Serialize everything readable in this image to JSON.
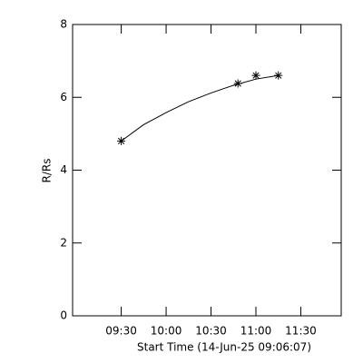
{
  "chart_data": {
    "type": "line",
    "xlabel": "Start Time (14-Jun-25 09:06:07)",
    "ylabel": "R/Rs",
    "xlim": [
      537.5,
      717
    ],
    "ylim": [
      0,
      8
    ],
    "xticks": [
      {
        "value": 570,
        "label": "09:30"
      },
      {
        "value": 600,
        "label": "10:00"
      },
      {
        "value": 630,
        "label": "10:30"
      },
      {
        "value": 660,
        "label": "11:00"
      },
      {
        "value": 690,
        "label": "11:30"
      }
    ],
    "yticks": [
      0,
      2,
      4,
      6,
      8
    ],
    "series": [
      {
        "color": "#000000",
        "marker": "asterisk",
        "x": [
          570,
          648,
          660,
          675
        ],
        "values": [
          4.8,
          6.38,
          6.6,
          6.6
        ]
      },
      {
        "color": "#000000",
        "marker": "none",
        "x": [
          570,
          585,
          600,
          615,
          630,
          645,
          660,
          675
        ],
        "values": [
          4.8,
          5.25,
          5.58,
          5.88,
          6.12,
          6.33,
          6.5,
          6.6
        ]
      }
    ]
  }
}
